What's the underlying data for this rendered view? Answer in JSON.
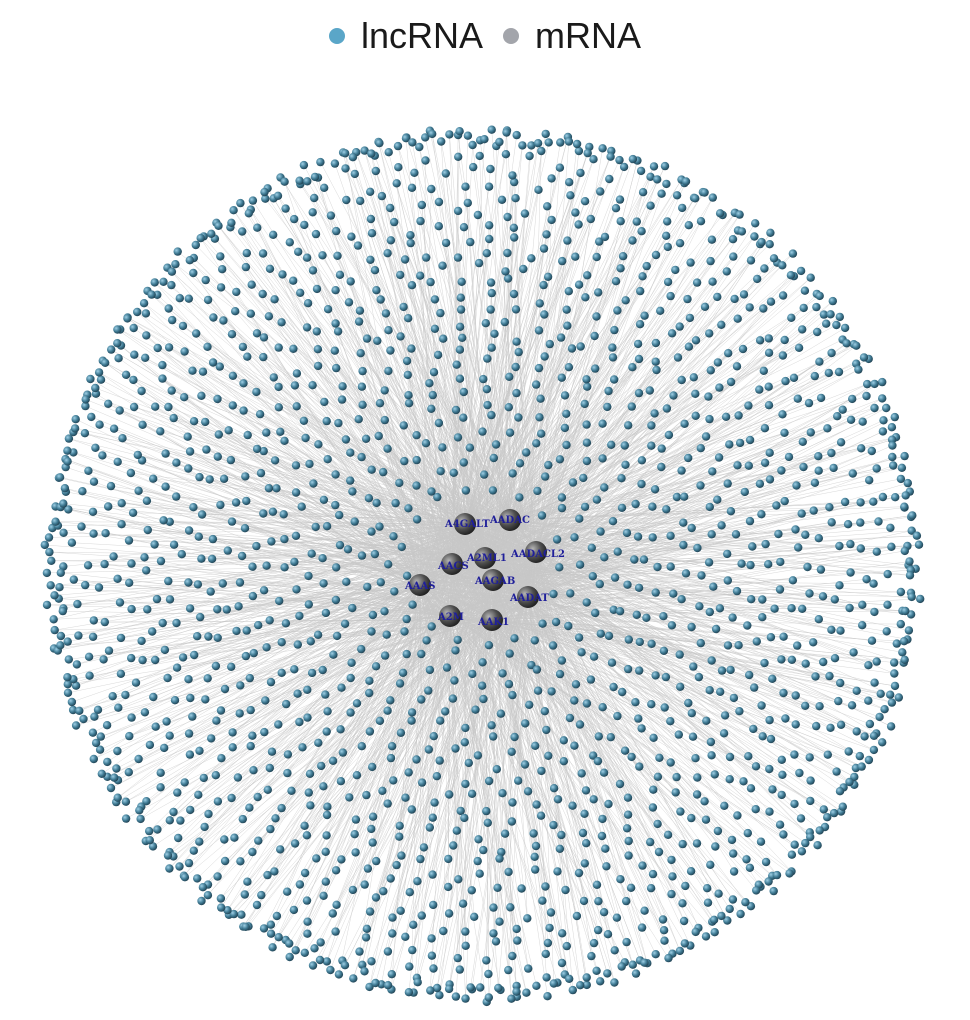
{
  "legend": {
    "items": [
      {
        "label": "lncRNA",
        "color": "#5aa6c8",
        "icon": "circle-dot-icon"
      },
      {
        "label": "mRNA",
        "color": "#a3a5ab",
        "icon": "circle-dot-icon"
      }
    ]
  },
  "network": {
    "node_types": [
      "lncRNA",
      "mRNA"
    ],
    "lncrna_node_color": "#3f6f84",
    "mrna_node_color": "#4d4d4d",
    "edge_color": "#c8c8c8",
    "label_color": "#1f1f9a",
    "hubs": [
      {
        "label": "A4GALT"
      },
      {
        "label": "AADAC"
      },
      {
        "label": "AACS"
      },
      {
        "label": "A2ML1"
      },
      {
        "label": "AADACL2"
      },
      {
        "label": "AAAS"
      },
      {
        "label": "AAGAB"
      },
      {
        "label": "AADAT"
      },
      {
        "label": "A2M"
      },
      {
        "label": "AAK1"
      }
    ]
  }
}
